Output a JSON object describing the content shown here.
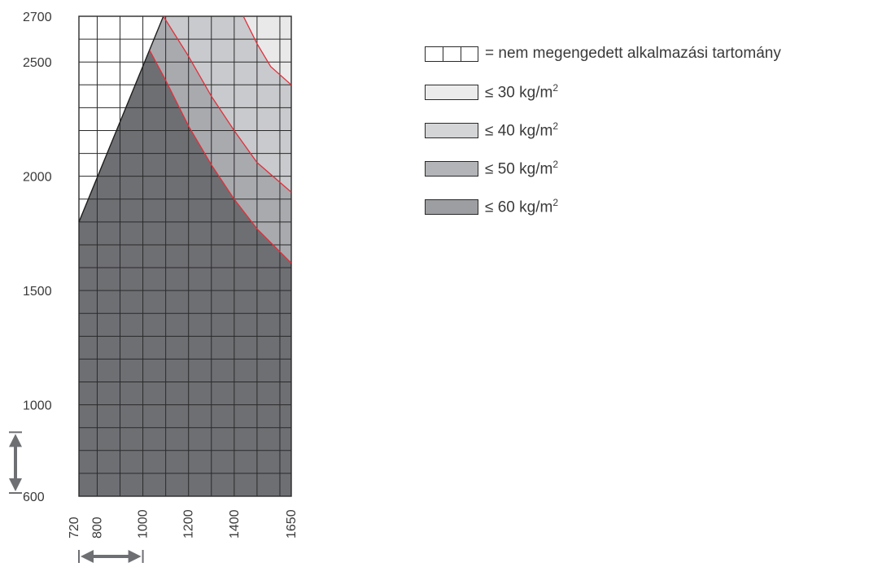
{
  "chart_data": {
    "type": "area",
    "x_ticks": [
      720,
      800,
      1000,
      1200,
      1400,
      1650
    ],
    "y_ticks": [
      600,
      1000,
      1500,
      2000,
      2500,
      2700
    ],
    "xlim": [
      720,
      1650
    ],
    "ylim": [
      600,
      2700
    ],
    "grid": true,
    "boundary_line": {
      "x": [
        720,
        1090
      ],
      "y": [
        1800,
        2700
      ]
    },
    "series": [
      {
        "name": "≤ 60 kg/m2",
        "color": "#6e6f73",
        "x": [
          720,
          1030,
          1100,
          1200,
          1300,
          1400,
          1500,
          1650
        ],
        "y": [
          1800,
          2550,
          2420,
          2220,
          2050,
          1900,
          1770,
          1620
        ]
      },
      {
        "name": "≤ 50 kg/m2",
        "color": "#a9aaae",
        "x": [
          1090,
          1200,
          1300,
          1400,
          1500,
          1650
        ],
        "y": [
          2700,
          2525,
          2350,
          2200,
          2060,
          1930
        ]
      },
      {
        "name": "≤ 40 kg/m2",
        "color": "#c9cacd",
        "x": [
          1440,
          1500,
          1560,
          1650
        ],
        "y": [
          2700,
          2580,
          2480,
          2400
        ]
      },
      {
        "name": "≤ 30 kg/m2",
        "color": "#e9e9ea",
        "x": [
          1650
        ],
        "y": [
          2700
        ]
      }
    ],
    "range_markers": {
      "vertical": {
        "from": 600,
        "to": 880
      },
      "horizontal": {
        "from": 720,
        "to": 1000
      }
    }
  },
  "legend": {
    "items": [
      {
        "key": "grid",
        "prefix": "= ",
        "text": "nem megengedett alkalmazási tartomány",
        "sup": "",
        "fill": "#ffffff"
      },
      {
        "key": "30",
        "prefix": "≤ ",
        "text": "30 kg/m",
        "sup": "2",
        "fill": "#ececec"
      },
      {
        "key": "40",
        "prefix": "≤ ",
        "text": "40 kg/m",
        "sup": "2",
        "fill": "#d4d5d7"
      },
      {
        "key": "50",
        "prefix": "≤ ",
        "text": "50 kg/m",
        "sup": "2",
        "fill": "#b3b4b7"
      },
      {
        "key": "60",
        "prefix": "≤ ",
        "text": "60 kg/m",
        "sup": "2",
        "fill": "#9d9ea2"
      }
    ]
  },
  "colors": {
    "grid_line": "#2a2a2a",
    "boundary_curve": "#e0303a",
    "arrow": "#6e6f73",
    "tick_text": "#3a3a3a"
  }
}
